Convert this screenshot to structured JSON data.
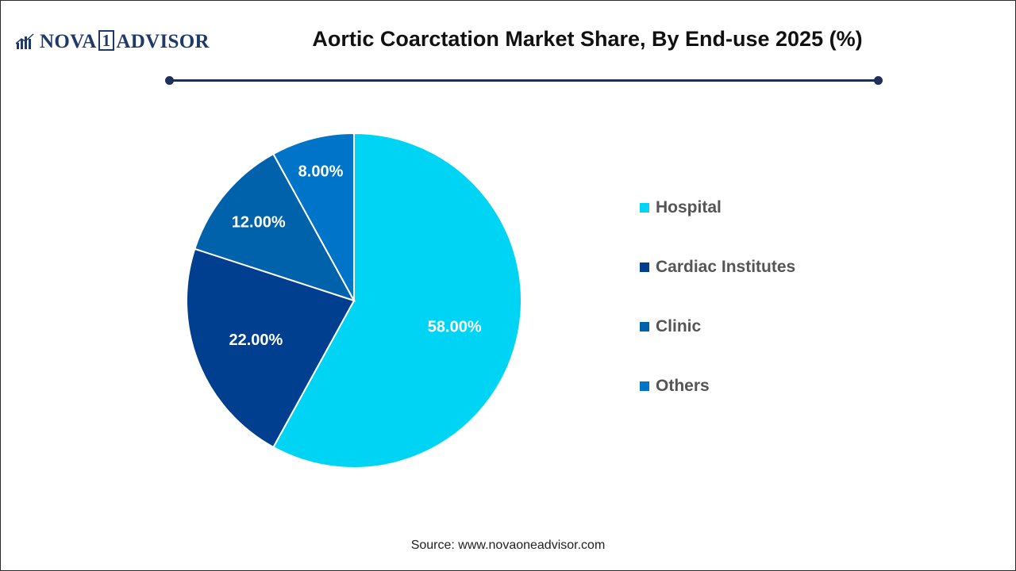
{
  "brand": {
    "name_left": "NOVA",
    "name_box": "1",
    "name_right": "ADVISOR"
  },
  "title": "Aortic Coarctation Market Share, By End-use 2025 (%)",
  "source": "Source: www.novaoneadvisor.com",
  "colors": {
    "divider": "#1f2f5a",
    "brand": "#1f3a68"
  },
  "chart_data": {
    "type": "pie",
    "title": "Aortic Coarctation Market Share, By End-use 2025 (%)",
    "slices": [
      {
        "name": "Hospital",
        "value": 58.0,
        "label": "58.00%",
        "color": "#00d4f5"
      },
      {
        "name": "Cardiac Institutes",
        "value": 22.0,
        "label": "22.00%",
        "color": "#003f8f"
      },
      {
        "name": "Clinic",
        "value": 12.0,
        "label": "12.00%",
        "color": "#0062ab"
      },
      {
        "name": "Others",
        "value": 8.0,
        "label": "8.00%",
        "color": "#0074c8"
      }
    ],
    "start_angle": "12 o'clock",
    "direction": "clockwise",
    "legend": {
      "position": "right"
    }
  }
}
